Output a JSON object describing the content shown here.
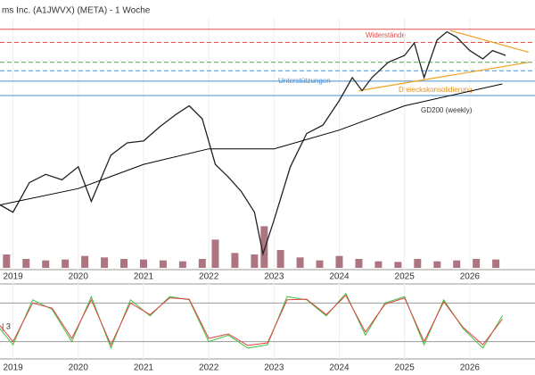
{
  "chart_data": {
    "type": "line",
    "title": "ms Inc. (A1JWVX) (META) - 1 Woche",
    "log_scale": true,
    "xlim": [
      2018.8,
      2027.0
    ],
    "xticks": [
      2019,
      2020,
      2021,
      2022,
      2023,
      2024,
      2025,
      2026
    ],
    "ylim": [
      80,
      1000
    ],
    "series": [
      {
        "name": "META",
        "color": "#222222",
        "x": [
          2018.8,
          2019.0,
          2019.25,
          2019.5,
          2019.75,
          2020.0,
          2020.2,
          2020.5,
          2020.75,
          2021.0,
          2021.25,
          2021.5,
          2021.7,
          2021.9,
          2022.1,
          2022.3,
          2022.5,
          2022.7,
          2022.83,
          2023.0,
          2023.25,
          2023.5,
          2023.75,
          2024.0,
          2024.2,
          2024.35,
          2024.5,
          2024.75,
          2025.0,
          2025.15,
          2025.3,
          2025.5,
          2025.65,
          2025.8,
          2026.0,
          2026.2,
          2026.35,
          2026.55
        ],
        "values": [
          145,
          135,
          180,
          195,
          185,
          210,
          150,
          235,
          265,
          270,
          310,
          350,
          380,
          335,
          215,
          190,
          165,
          135,
          90,
          125,
          210,
          290,
          315,
          400,
          500,
          440,
          500,
          580,
          620,
          700,
          500,
          720,
          780,
          740,
          650,
          600,
          650,
          620
        ]
      },
      {
        "name": "GD200 (weekly)",
        "color": "#000000",
        "x": [
          2018.8,
          2020.0,
          2021.0,
          2022.0,
          2023.0,
          2024.0,
          2025.0,
          2026.5
        ],
        "values": [
          145,
          170,
          215,
          250,
          250,
          300,
          380,
          470
        ]
      }
    ],
    "levels": [
      {
        "value": 800,
        "color": "#e05050",
        "dash": false
      },
      {
        "value": 704,
        "color": "#e05050",
        "dash": true
      },
      {
        "value": 580,
        "color": "#50a050",
        "dash": true
      },
      {
        "value": 534,
        "color": "#4a8fd0",
        "dash": true
      },
      {
        "value": 483,
        "color": "#4a8fd0",
        "dash": false
      },
      {
        "value": 420,
        "color": "#4a8fd0",
        "dash": false
      }
    ],
    "triangle": {
      "color": "#f0a020",
      "upper": {
        "x": [
          2025.7,
          2026.9
        ],
        "values": [
          790,
          640
        ]
      },
      "lower": {
        "x": [
          2024.3,
          2026.9
        ],
        "values": [
          440,
          580
        ]
      }
    },
    "annotations": [
      "Widerstände",
      "Unterstützungen",
      "Dreieckskonsolidierung",
      "GD200 (weekly)"
    ],
    "volume": {
      "color": "#8a3a4a",
      "vlim": [
        0,
        150
      ],
      "x": [
        2018.9,
        2019.2,
        2019.5,
        2019.8,
        2020.1,
        2020.4,
        2020.7,
        2021.0,
        2021.3,
        2021.6,
        2021.9,
        2022.1,
        2022.4,
        2022.7,
        2022.85,
        2023.1,
        2023.4,
        2023.7,
        2024.0,
        2024.3,
        2024.6,
        2024.9,
        2025.2,
        2025.5,
        2025.8,
        2026.1,
        2026.4
      ],
      "values": [
        45,
        30,
        25,
        28,
        40,
        35,
        30,
        28,
        25,
        22,
        30,
        95,
        50,
        45,
        140,
        60,
        35,
        25,
        40,
        30,
        22,
        20,
        30,
        22,
        25,
        30,
        28
      ]
    },
    "stochastic": {
      "label": "| 3",
      "levels": [
        80,
        20
      ],
      "ylim": [
        0,
        100
      ],
      "series": [
        {
          "color": "#40c040",
          "x": [
            2018.8,
            2019.0,
            2019.3,
            2019.6,
            2019.9,
            2020.2,
            2020.5,
            2020.8,
            2021.1,
            2021.4,
            2021.7,
            2022.0,
            2022.3,
            2022.6,
            2022.9,
            2023.2,
            2023.5,
            2023.8,
            2024.1,
            2024.4,
            2024.7,
            2025.0,
            2025.3,
            2025.6,
            2025.9,
            2026.2,
            2026.5
          ],
          "values": [
            40,
            15,
            85,
            70,
            20,
            90,
            10,
            85,
            60,
            90,
            85,
            20,
            30,
            10,
            15,
            90,
            85,
            60,
            95,
            30,
            80,
            90,
            15,
            85,
            40,
            10,
            60
          ]
        },
        {
          "color": "#e04040",
          "x": [
            2018.8,
            2019.0,
            2019.3,
            2019.6,
            2019.9,
            2020.2,
            2020.5,
            2020.8,
            2021.1,
            2021.4,
            2021.7,
            2022.0,
            2022.3,
            2022.6,
            2022.9,
            2023.2,
            2023.5,
            2023.8,
            2024.1,
            2024.4,
            2024.7,
            2025.0,
            2025.3,
            2025.6,
            2025.9,
            2026.2,
            2026.5
          ],
          "values": [
            45,
            20,
            80,
            72,
            25,
            85,
            15,
            80,
            62,
            88,
            86,
            25,
            32,
            14,
            18,
            85,
            86,
            62,
            92,
            35,
            78,
            88,
            20,
            82,
            42,
            15,
            55
          ]
        }
      ]
    }
  }
}
